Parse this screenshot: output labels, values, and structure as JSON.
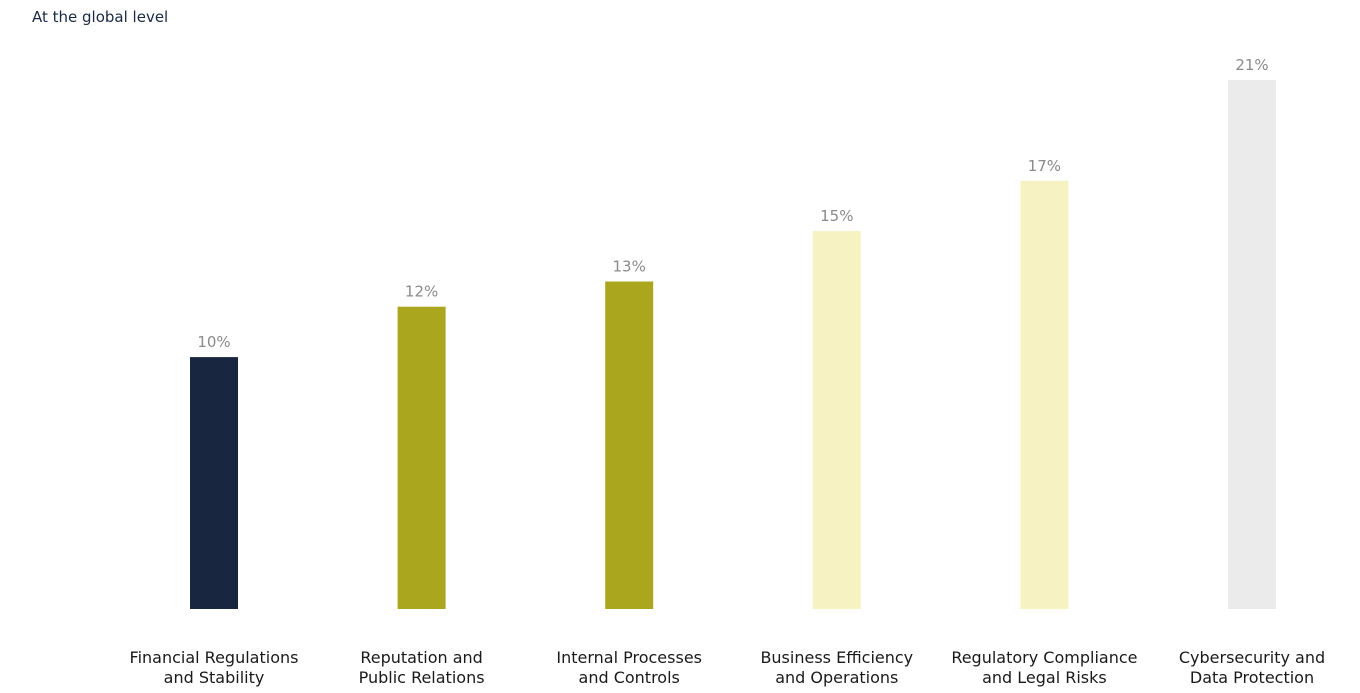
{
  "chart_data": {
    "type": "bar",
    "subtitle": "At the global level",
    "categories": [
      [
        "Financial Regulations",
        "and Stability"
      ],
      [
        "Reputation and",
        "Public Relations"
      ],
      [
        "Internal Processes",
        "and Controls"
      ],
      [
        "Business Efficiency",
        "and Operations"
      ],
      [
        "Regulatory Compliance",
        "and Legal Risks"
      ],
      [
        "Cybersecurity and",
        "Data Protection"
      ]
    ],
    "values": [
      10,
      12,
      13,
      15,
      17,
      21
    ],
    "value_labels": [
      "10%",
      "12%",
      "13%",
      "15%",
      "17%",
      "21%"
    ],
    "colors": [
      "#182640",
      "#aaa71f",
      "#aaa71f",
      "#f6f2c2",
      "#f6f2c2",
      "#ebebeb"
    ],
    "ylim": [
      0,
      21
    ],
    "grid": false,
    "legend": "none"
  }
}
